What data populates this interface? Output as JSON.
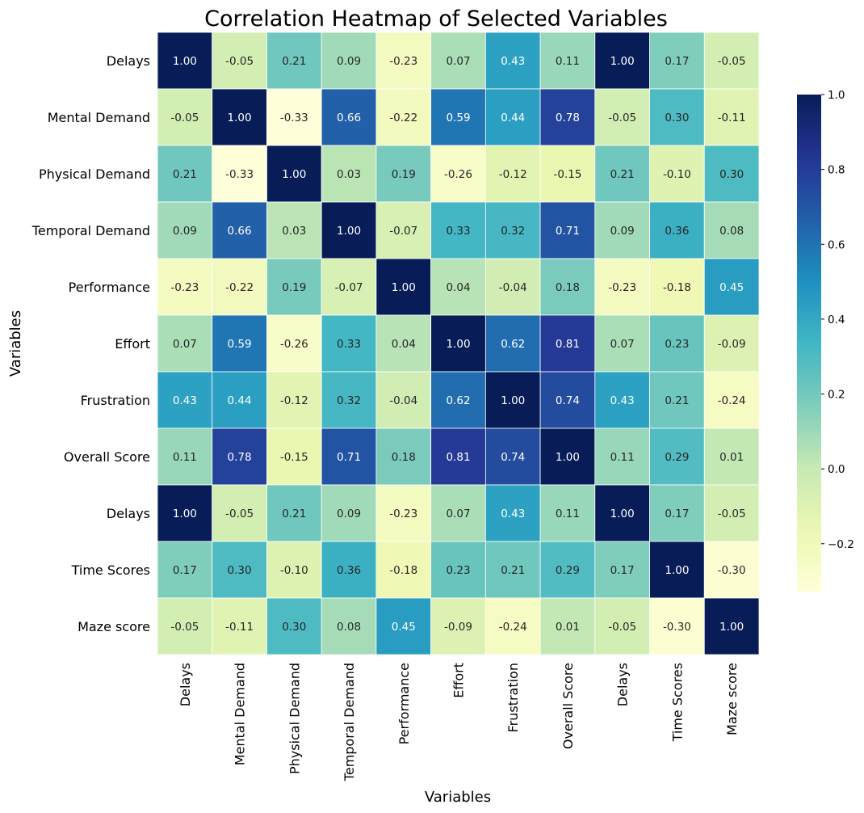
{
  "chart_data": {
    "type": "heatmap",
    "title": "Correlation Heatmap of Selected Variables",
    "xlabel": "Variables",
    "ylabel": "Variables",
    "rows": [
      "Delays",
      "Mental Demand",
      "Physical Demand",
      "Temporal Demand",
      "Performance",
      "Effort",
      "Frustration",
      "Overall Score",
      "Delays",
      "Time Scores",
      "Maze score"
    ],
    "columns": [
      "Delays",
      "Mental Demand",
      "Physical Demand",
      "Temporal Demand",
      "Performance",
      "Effort",
      "Frustration",
      "Overall Score",
      "Delays",
      "Time Scores",
      "Maze score"
    ],
    "values": [
      [
        1.0,
        -0.05,
        0.21,
        0.09,
        -0.23,
        0.07,
        0.43,
        0.11,
        1.0,
        0.17,
        -0.05
      ],
      [
        -0.05,
        1.0,
        -0.33,
        0.66,
        -0.22,
        0.59,
        0.44,
        0.78,
        -0.05,
        0.3,
        -0.11
      ],
      [
        0.21,
        -0.33,
        1.0,
        0.03,
        0.19,
        -0.26,
        -0.12,
        -0.15,
        0.21,
        -0.1,
        0.3
      ],
      [
        0.09,
        0.66,
        0.03,
        1.0,
        -0.07,
        0.33,
        0.32,
        0.71,
        0.09,
        0.36,
        0.08
      ],
      [
        -0.23,
        -0.22,
        0.19,
        -0.07,
        1.0,
        0.04,
        -0.04,
        0.18,
        -0.23,
        -0.18,
        0.45
      ],
      [
        0.07,
        0.59,
        -0.26,
        0.33,
        0.04,
        1.0,
        0.62,
        0.81,
        0.07,
        0.23,
        -0.09
      ],
      [
        0.43,
        0.44,
        -0.12,
        0.32,
        -0.04,
        0.62,
        1.0,
        0.74,
        0.43,
        0.21,
        -0.24
      ],
      [
        0.11,
        0.78,
        -0.15,
        0.71,
        0.18,
        0.81,
        0.74,
        1.0,
        0.11,
        0.29,
        0.01
      ],
      [
        1.0,
        -0.05,
        0.21,
        0.09,
        -0.23,
        0.07,
        0.43,
        0.11,
        1.0,
        0.17,
        -0.05
      ],
      [
        0.17,
        0.3,
        -0.1,
        0.36,
        -0.18,
        0.23,
        0.21,
        0.29,
        0.17,
        1.0,
        -0.3
      ],
      [
        -0.05,
        -0.11,
        0.3,
        0.08,
        0.45,
        -0.09,
        -0.24,
        0.01,
        -0.05,
        -0.3,
        1.0
      ]
    ],
    "value_format": "2 decimals",
    "colormap": "YlGnBu",
    "vmin": -0.33,
    "vmax": 1.0,
    "colorbar": {
      "ticks": [
        1.0,
        0.8,
        0.6,
        0.4,
        0.2,
        0.0,
        -0.2
      ],
      "tick_labels": [
        "1.0",
        "0.8",
        "0.6",
        "0.4",
        "0.2",
        "0.0",
        "−0.2"
      ]
    },
    "grid": true
  }
}
